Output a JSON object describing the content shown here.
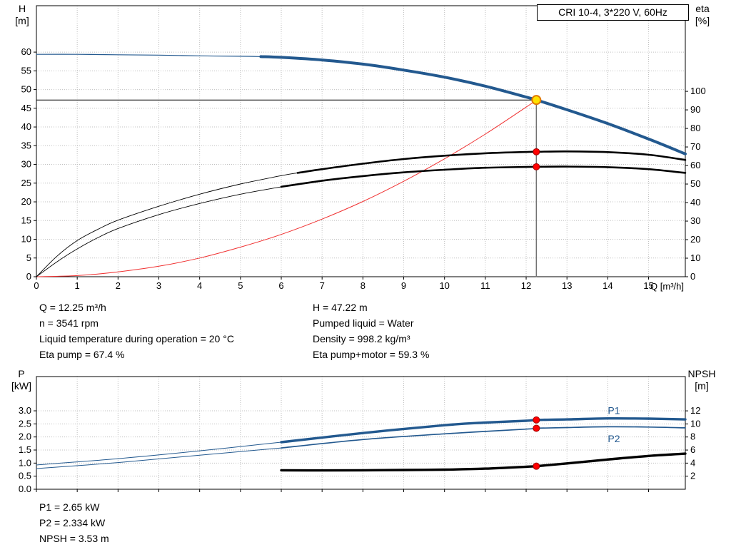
{
  "colors": {
    "curve_blue": "#23598f",
    "curve_black": "#000000",
    "curve_red": "#f03030",
    "marker_red": "#ff0000",
    "marker_red_edge": "#a00000",
    "duty_yellow": "#ffe200",
    "duty_yellow_edge": "#e07800",
    "duty_line_gray": "#707070",
    "grid": "#c0c0c0",
    "axis": "#000000"
  },
  "info_top": {
    "col1": [
      "Q = 12.25 m³/h",
      "n = 3541 rpm",
      "Liquid temperature during operation = 20 °C",
      "Eta pump = 67.4 %"
    ],
    "col2": [
      "H = 47.22 m",
      "Pumped liquid = Water",
      "Density = 998.2 kg/m³",
      "Eta pump+motor = 59.3 %"
    ]
  },
  "info_bottom": [
    "P1 = 2.65 kW",
    "P2 = 2.334 kW",
    "NPSH = 3.53 m"
  ],
  "chart_data": [
    {
      "type": "line",
      "title": "CRI 10-4, 3*220 V, 60Hz",
      "x_axis": {
        "name": "Q",
        "unit_label": "Q [m³/h]",
        "min": 0,
        "max": 15.9,
        "ticks": [
          [
            0,
            "0"
          ],
          [
            1,
            "1"
          ],
          [
            2,
            "2"
          ],
          [
            3,
            "3"
          ],
          [
            4,
            "4"
          ],
          [
            5,
            "5"
          ],
          [
            6,
            "6"
          ],
          [
            7,
            "7"
          ],
          [
            8,
            "8"
          ],
          [
            9,
            "9"
          ],
          [
            10,
            "10"
          ],
          [
            11,
            "11"
          ],
          [
            12,
            "12"
          ],
          [
            13,
            "13"
          ],
          [
            14,
            "14"
          ],
          [
            15,
            "15"
          ]
        ]
      },
      "y_left": {
        "name": "H",
        "unit": "[m]",
        "min": 0,
        "max": 72.4,
        "ticks": [
          [
            0,
            "0"
          ],
          [
            5,
            "5"
          ],
          [
            10,
            "10"
          ],
          [
            15,
            "15"
          ],
          [
            20,
            "20"
          ],
          [
            25,
            "25"
          ],
          [
            30,
            "30"
          ],
          [
            35,
            "35"
          ],
          [
            40,
            "40"
          ],
          [
            45,
            "45"
          ],
          [
            50,
            "50"
          ],
          [
            55,
            "55"
          ],
          [
            60,
            "60"
          ]
        ]
      },
      "y_right": {
        "name": "eta",
        "unit": "[%]",
        "min": 0,
        "max": 146.2,
        "ticks": [
          [
            0,
            "0"
          ],
          [
            10,
            "10"
          ],
          [
            20,
            "20"
          ],
          [
            30,
            "30"
          ],
          [
            40,
            "40"
          ],
          [
            50,
            "50"
          ],
          [
            60,
            "60"
          ],
          [
            70,
            "70"
          ],
          [
            80,
            "80"
          ],
          [
            90,
            "90"
          ],
          [
            100,
            "100"
          ]
        ]
      },
      "duty_point": {
        "Q": 12.25,
        "H": 47.22,
        "eta_pump": 67.4,
        "eta_pump_motor": 59.3
      },
      "series": [
        {
          "name": "duty-vline",
          "axis": "left",
          "color_key": "duty_line_gray",
          "width": 1.4,
          "straight": true,
          "points": [
            [
              12.25,
              0
            ],
            [
              12.25,
              47.22
            ]
          ]
        },
        {
          "name": "duty-hline",
          "axis": "left",
          "color_key": "curve_black",
          "width": 1,
          "straight": true,
          "points": [
            [
              0,
              47.22
            ],
            [
              12.25,
              47.22
            ]
          ]
        },
        {
          "name": "system-curve",
          "axis": "left",
          "color_key": "curve_red",
          "width": 1,
          "points": [
            [
              0,
              0
            ],
            [
              1,
              0.3
            ],
            [
              2,
              1.3
            ],
            [
              3,
              2.8
            ],
            [
              4,
              5.0
            ],
            [
              5,
              7.9
            ],
            [
              6,
              11.3
            ],
            [
              7,
              15.4
            ],
            [
              8,
              20.1
            ],
            [
              9,
              25.5
            ],
            [
              10,
              31.5
            ],
            [
              11,
              38.1
            ],
            [
              12,
              45.3
            ],
            [
              12.25,
              47.22
            ]
          ]
        },
        {
          "name": "pump-curve-thin",
          "axis": "left",
          "color_key": "curve_blue",
          "width": 1.2,
          "points": [
            [
              0,
              59.4
            ],
            [
              1,
              59.4
            ],
            [
              2,
              59.3
            ],
            [
              3,
              59.2
            ],
            [
              4,
              59.0
            ],
            [
              5,
              58.9
            ],
            [
              5.5,
              58.8
            ]
          ]
        },
        {
          "name": "pump-curve-thick",
          "axis": "left",
          "color_key": "curve_blue",
          "width": 4,
          "points": [
            [
              5.5,
              58.8
            ],
            [
              6,
              58.6
            ],
            [
              7,
              57.9
            ],
            [
              8,
              56.8
            ],
            [
              9,
              55.2
            ],
            [
              10,
              53.3
            ],
            [
              11,
              50.9
            ],
            [
              12,
              48.0
            ],
            [
              12.25,
              47.22
            ],
            [
              13,
              44.6
            ],
            [
              14,
              40.9
            ],
            [
              15,
              36.8
            ],
            [
              15.9,
              32.8
            ]
          ]
        },
        {
          "name": "eta-pump-curve-thin",
          "axis": "right",
          "color_key": "curve_black",
          "width": 0.9,
          "points": [
            [
              0,
              0
            ],
            [
              0.5,
              11
            ],
            [
              1,
              19.5
            ],
            [
              1.5,
              25.5
            ],
            [
              2,
              30.5
            ],
            [
              3,
              38
            ],
            [
              4,
              44.5
            ],
            [
              5,
              50
            ],
            [
              6,
              54.5
            ],
            [
              6.4,
              56
            ]
          ]
        },
        {
          "name": "eta-pump-curve-thick",
          "axis": "right",
          "color_key": "curve_black",
          "width": 2.6,
          "points": [
            [
              6.4,
              56
            ],
            [
              7,
              58
            ],
            [
              8,
              61
            ],
            [
              9,
              63.5
            ],
            [
              10,
              65.3
            ],
            [
              11,
              66.6
            ],
            [
              12,
              67.3
            ],
            [
              12.25,
              67.4
            ],
            [
              13,
              67.6
            ],
            [
              14,
              67.2
            ],
            [
              15,
              65.8
            ],
            [
              15.9,
              63
            ]
          ]
        },
        {
          "name": "eta-pump-motor-curve-thin",
          "axis": "right",
          "color_key": "curve_black",
          "width": 0.9,
          "points": [
            [
              0,
              0
            ],
            [
              0.5,
              8
            ],
            [
              1,
              15
            ],
            [
              1.5,
              21
            ],
            [
              2,
              26
            ],
            [
              3,
              33.5
            ],
            [
              4,
              39.5
            ],
            [
              5,
              44.5
            ],
            [
              6,
              48.5
            ]
          ]
        },
        {
          "name": "eta-pump-motor-curve-thick",
          "axis": "right",
          "color_key": "curve_black",
          "width": 2.6,
          "points": [
            [
              6,
              48.5
            ],
            [
              7,
              51.8
            ],
            [
              8,
              54.3
            ],
            [
              9,
              56.3
            ],
            [
              10,
              57.7
            ],
            [
              11,
              58.8
            ],
            [
              12,
              59.2
            ],
            [
              12.25,
              59.3
            ],
            [
              13,
              59.4
            ],
            [
              14,
              59.1
            ],
            [
              15,
              58
            ],
            [
              15.9,
              56
            ]
          ]
        }
      ],
      "markers": [
        {
          "name": "duty-point-marker",
          "axis": "left",
          "x": 12.25,
          "y": 47.22,
          "r": 6,
          "fill_key": "duty_yellow",
          "stroke_key": "duty_yellow_edge",
          "stroke_width": 2
        },
        {
          "name": "eta-pump-point",
          "axis": "right",
          "x": 12.25,
          "y": 67.4,
          "r": 4.5,
          "fill_key": "marker_red",
          "stroke_key": "marker_red_edge",
          "stroke_width": 1
        },
        {
          "name": "eta-pump-motor-point",
          "axis": "right",
          "x": 12.25,
          "y": 59.3,
          "r": 4.5,
          "fill_key": "marker_red",
          "stroke_key": "marker_red_edge",
          "stroke_width": 1
        }
      ],
      "labels": []
    },
    {
      "type": "line",
      "title": "",
      "x_axis": {
        "name": "Q",
        "unit_label": "",
        "min": 0,
        "max": 15.9,
        "ticks": [
          [
            0,
            ""
          ],
          [
            1,
            ""
          ],
          [
            2,
            ""
          ],
          [
            3,
            ""
          ],
          [
            4,
            ""
          ],
          [
            5,
            ""
          ],
          [
            6,
            ""
          ],
          [
            7,
            ""
          ],
          [
            8,
            ""
          ],
          [
            9,
            ""
          ],
          [
            10,
            ""
          ],
          [
            11,
            ""
          ],
          [
            12,
            ""
          ],
          [
            13,
            ""
          ],
          [
            14,
            ""
          ],
          [
            15,
            ""
          ]
        ]
      },
      "y_left": {
        "name": "P",
        "unit": "[kW]",
        "min": 0,
        "max": 4.31,
        "ticks": [
          [
            0,
            "0.0"
          ],
          [
            0.5,
            "0.5"
          ],
          [
            1,
            "1.0"
          ],
          [
            1.5,
            "1.5"
          ],
          [
            2,
            "2.0"
          ],
          [
            2.5,
            "2.5"
          ],
          [
            3,
            "3.0"
          ]
        ]
      },
      "y_right": {
        "name": "NPSH",
        "unit": "[m]",
        "min": 0,
        "max": 17.25,
        "ticks": [
          [
            2,
            "2"
          ],
          [
            4,
            "4"
          ],
          [
            6,
            "6"
          ],
          [
            8,
            "8"
          ],
          [
            10,
            "10"
          ],
          [
            12,
            "12"
          ]
        ]
      },
      "duty_point": {
        "Q": 12.25,
        "P1_kW": 2.65,
        "P2_kW": 2.334,
        "NPSH_m": 3.53
      },
      "series": [
        {
          "name": "p1-curve-thin",
          "axis": "left",
          "color_key": "curve_blue",
          "width": 1,
          "points": [
            [
              0,
              0.93
            ],
            [
              2,
              1.17
            ],
            [
              4,
              1.47
            ],
            [
              6,
              1.8
            ]
          ]
        },
        {
          "name": "p1-curve-thick",
          "axis": "left",
          "color_key": "curve_blue",
          "width": 3.4,
          "points": [
            [
              6,
              1.8
            ],
            [
              8,
              2.15
            ],
            [
              10,
              2.45
            ],
            [
              11,
              2.55
            ],
            [
              12,
              2.62
            ],
            [
              12.25,
              2.65
            ],
            [
              13,
              2.67
            ],
            [
              14,
              2.71
            ],
            [
              15,
              2.7
            ],
            [
              15.9,
              2.67
            ]
          ]
        },
        {
          "name": "p2-curve-thin",
          "axis": "left",
          "color_key": "curve_blue",
          "width": 1,
          "points": [
            [
              0,
              0.79
            ],
            [
              2,
              1.02
            ],
            [
              4,
              1.3
            ],
            [
              6,
              1.58
            ]
          ]
        },
        {
          "name": "p2-curve-thick",
          "axis": "left",
          "color_key": "curve_blue",
          "width": 1.7,
          "points": [
            [
              6,
              1.58
            ],
            [
              8,
              1.9
            ],
            [
              10,
              2.12
            ],
            [
              12,
              2.3
            ],
            [
              12.25,
              2.334
            ],
            [
              13,
              2.36
            ],
            [
              14,
              2.39
            ],
            [
              15,
              2.38
            ],
            [
              15.9,
              2.35
            ]
          ]
        },
        {
          "name": "npsh-curve",
          "axis": "right",
          "color_key": "curve_black",
          "width": 3.4,
          "points": [
            [
              6,
              2.9
            ],
            [
              7,
              2.88
            ],
            [
              8,
              2.9
            ],
            [
              9,
              2.95
            ],
            [
              10,
              3.0
            ],
            [
              11,
              3.15
            ],
            [
              12,
              3.45
            ],
            [
              12.25,
              3.53
            ],
            [
              13,
              3.95
            ],
            [
              14,
              4.55
            ],
            [
              15,
              5.1
            ],
            [
              15.9,
              5.45
            ]
          ]
        }
      ],
      "markers": [
        {
          "name": "p1-point",
          "axis": "left",
          "x": 12.25,
          "y": 2.65,
          "r": 4.5,
          "fill_key": "marker_red",
          "stroke_key": "marker_red_edge",
          "stroke_width": 1
        },
        {
          "name": "p2-point",
          "axis": "left",
          "x": 12.25,
          "y": 2.334,
          "r": 4.5,
          "fill_key": "marker_red",
          "stroke_key": "marker_red_edge",
          "stroke_width": 1
        },
        {
          "name": "npsh-point",
          "axis": "right",
          "x": 12.25,
          "y": 3.53,
          "r": 4.5,
          "fill_key": "marker_red",
          "stroke_key": "marker_red_edge",
          "stroke_width": 1
        }
      ],
      "labels": [
        {
          "name": "p1-series-label",
          "text": "P1",
          "axis": "left",
          "x": 14.0,
          "y": 3.02,
          "color_key": "curve_blue"
        },
        {
          "name": "p2-series-label",
          "text": "P2",
          "axis": "left",
          "x": 14.0,
          "y": 1.93,
          "color_key": "curve_blue"
        }
      ]
    }
  ]
}
